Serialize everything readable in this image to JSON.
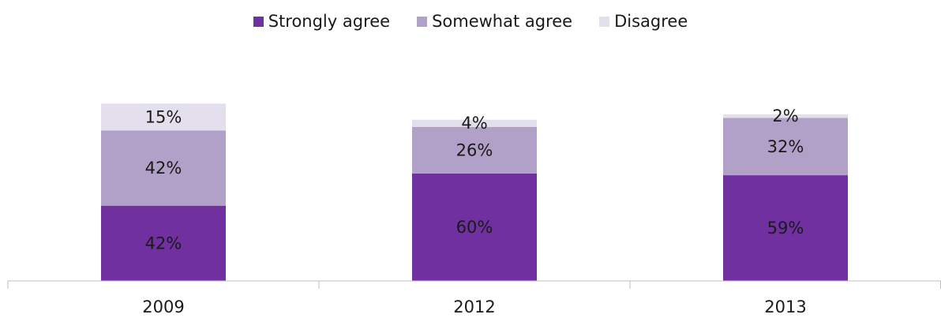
{
  "chart_data": {
    "type": "bar",
    "stacked": true,
    "categories": [
      "2009",
      "2012",
      "2013"
    ],
    "series": [
      {
        "name": "Strongly agree",
        "values": [
          42,
          60,
          59
        ],
        "labels": [
          "42%",
          "60%",
          "59%"
        ],
        "color": "#7030a0"
      },
      {
        "name": "Somewhat agree",
        "values": [
          42,
          26,
          32
        ],
        "labels": [
          "42%",
          "26%",
          "32%"
        ],
        "color": "#b1a0c7"
      },
      {
        "name": "Disagree",
        "values": [
          15,
          4,
          2
        ],
        "labels": [
          "15%",
          "4%",
          "2%"
        ],
        "color": "#e4dfec"
      }
    ],
    "legend_position": "top",
    "grid": false,
    "ylim": [
      0,
      100
    ],
    "axis_color": "#bfbfbf"
  }
}
